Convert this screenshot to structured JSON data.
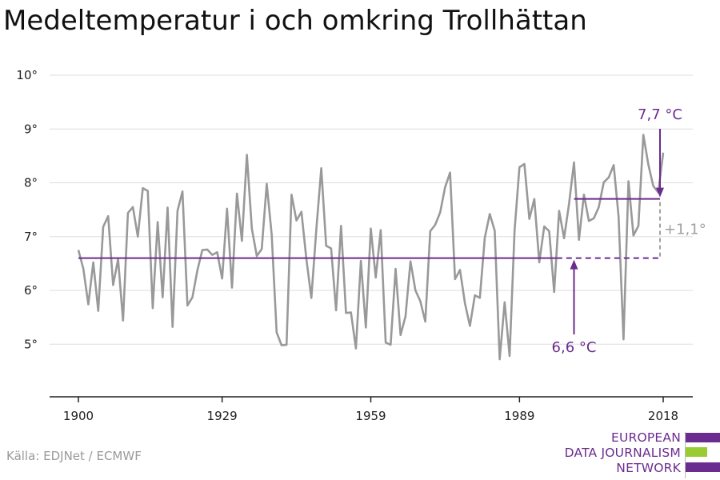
{
  "title": "Medeltemperatur i och omkring Trollhättan",
  "source": "Källa: EDJNet / ECMWF",
  "logo": {
    "lines": [
      "EUROPEAN",
      "DATA JOURNALISM",
      "NETWORK"
    ],
    "colors": [
      "#6b2c8f",
      "#99cc33",
      "#6b2c8f"
    ]
  },
  "colors": {
    "line": "#999999",
    "accent": "#6b2c8f",
    "grid": "#dddddd",
    "diff": "#a0a0a0"
  },
  "chart_data": {
    "type": "line",
    "title": "Medeltemperatur i och omkring Trollhättan",
    "xlabel": "",
    "ylabel": "",
    "xlim": [
      1900,
      2018
    ],
    "ylim": [
      4,
      10
    ],
    "grid": true,
    "x_ticks": [
      1900,
      1929,
      1959,
      1989,
      2018
    ],
    "x_tick_labels": [
      "1900",
      "1929",
      "1959",
      "1989",
      "2018"
    ],
    "y_ticks": [
      5,
      6,
      7,
      8,
      9,
      10
    ],
    "y_tick_labels": [
      "5°",
      "6°",
      "7°",
      "8°",
      "9°",
      "10°"
    ],
    "x_start": 1900,
    "values": [
      6.75,
      6.4,
      5.74,
      6.52,
      5.62,
      7.18,
      7.38,
      6.1,
      6.58,
      5.44,
      7.44,
      7.55,
      7.0,
      7.9,
      7.85,
      5.67,
      7.27,
      5.87,
      7.54,
      5.32,
      7.48,
      7.84,
      5.72,
      5.87,
      6.37,
      6.75,
      6.76,
      6.66,
      6.71,
      6.22,
      7.52,
      6.05,
      7.8,
      6.92,
      8.52,
      7.15,
      6.64,
      6.77,
      7.98,
      7.04,
      5.22,
      4.98,
      4.99,
      7.78,
      7.3,
      7.46,
      6.58,
      5.86,
      7.13,
      8.27,
      6.83,
      6.78,
      5.63,
      7.2,
      5.58,
      5.59,
      4.92,
      6.55,
      5.31,
      7.15,
      6.24,
      7.12,
      5.03,
      4.99,
      6.4,
      5.17,
      5.52,
      6.54,
      6.0,
      5.8,
      5.42,
      7.1,
      7.22,
      7.45,
      7.92,
      8.19,
      6.21,
      6.38,
      5.76,
      5.34,
      5.91,
      5.86,
      6.98,
      7.42,
      7.11,
      4.72,
      5.78,
      4.78,
      7.11,
      8.29,
      8.35,
      7.33,
      7.7,
      6.52,
      7.19,
      7.1,
      5.97,
      7.48,
      6.97,
      7.61,
      8.38,
      6.94,
      7.78,
      7.29,
      7.34,
      7.55,
      8.01,
      8.1,
      8.33,
      7.38,
      5.09,
      8.03,
      7.02,
      7.2,
      8.89,
      8.34,
      7.94,
      7.82,
      8.56
    ],
    "annotations": [
      {
        "label": "6,6 °C",
        "value": 6.6,
        "from": 1900,
        "to": 2000
      },
      {
        "label": "7,7 °C",
        "value": 7.7,
        "from": 2000,
        "to": 2018
      },
      {
        "label": "+1,1°",
        "from_value": 6.6,
        "to_value": 7.7
      }
    ]
  }
}
